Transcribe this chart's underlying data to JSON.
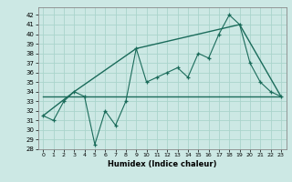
{
  "xlabel": "Humidex (Indice chaleur)",
  "bg_color": "#cce8e4",
  "line_color": "#1a6b5a",
  "grid_color": "#aad4cc",
  "xlim": [
    -0.5,
    23.5
  ],
  "ylim": [
    28,
    42.8
  ],
  "yticks": [
    28,
    29,
    30,
    31,
    32,
    33,
    34,
    35,
    36,
    37,
    38,
    39,
    40,
    41,
    42
  ],
  "xticks": [
    0,
    1,
    2,
    3,
    4,
    5,
    6,
    7,
    8,
    9,
    10,
    11,
    12,
    13,
    14,
    15,
    16,
    17,
    18,
    19,
    20,
    21,
    22,
    23
  ],
  "series1_x": [
    0,
    1,
    2,
    3,
    4,
    5,
    6,
    7,
    8,
    9,
    10,
    11,
    12,
    13,
    14,
    15,
    16,
    17,
    18,
    19,
    20,
    21,
    22,
    23
  ],
  "series1_y": [
    31.5,
    31.0,
    33.0,
    34.0,
    33.5,
    28.5,
    32.0,
    30.5,
    33.0,
    38.5,
    35.0,
    35.5,
    36.0,
    36.5,
    35.5,
    38.0,
    37.5,
    40.0,
    42.0,
    41.0,
    37.0,
    35.0,
    34.0,
    33.5
  ],
  "series2_x": [
    0,
    3,
    9,
    19,
    23
  ],
  "series2_y": [
    31.5,
    34.0,
    38.5,
    41.0,
    33.5
  ],
  "series3_x": [
    0,
    23
  ],
  "series3_y": [
    33.5,
    33.5
  ]
}
